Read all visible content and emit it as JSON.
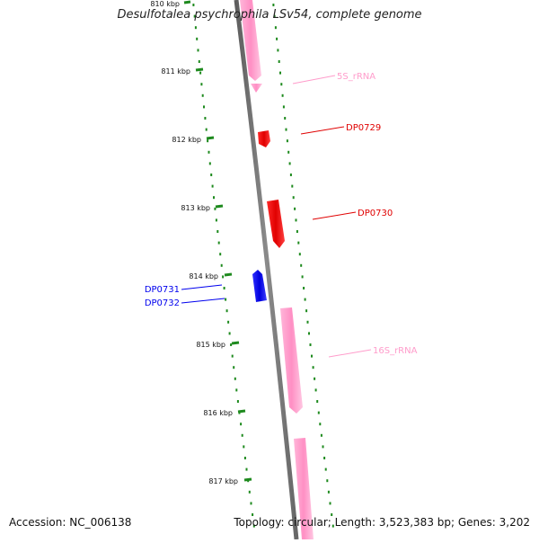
{
  "title": "Desulfotalea psychrophila LSv54, complete genome",
  "footer": {
    "accession": "Accession: NC_006138",
    "summary": "Topology: circular; Length: 3,523,383 bp; Genes: 3,202"
  },
  "colors": {
    "backbone": "#7a7a7a",
    "tick": "#1e8a1e",
    "rna": "#ff9ccb",
    "forward_gene": "#ff0000",
    "reverse_gene": "#0000ee"
  },
  "ticks": [
    {
      "label": "810 kbp"
    },
    {
      "label": "811 kbp"
    },
    {
      "label": "812 kbp"
    },
    {
      "label": "813 kbp"
    },
    {
      "label": "814 kbp"
    },
    {
      "label": "815 kbp"
    },
    {
      "label": "816 kbp"
    },
    {
      "label": "817 kbp"
    }
  ],
  "features": [
    {
      "label": "5S_rRNA",
      "type": "rna"
    },
    {
      "label": "DP0729",
      "type": "forward_gene"
    },
    {
      "label": "DP0730",
      "type": "forward_gene"
    },
    {
      "label": "DP0731",
      "type": "reverse_gene"
    },
    {
      "label": "DP0732",
      "type": "reverse_gene"
    },
    {
      "label": "16S_rRNA",
      "type": "rna"
    }
  ]
}
